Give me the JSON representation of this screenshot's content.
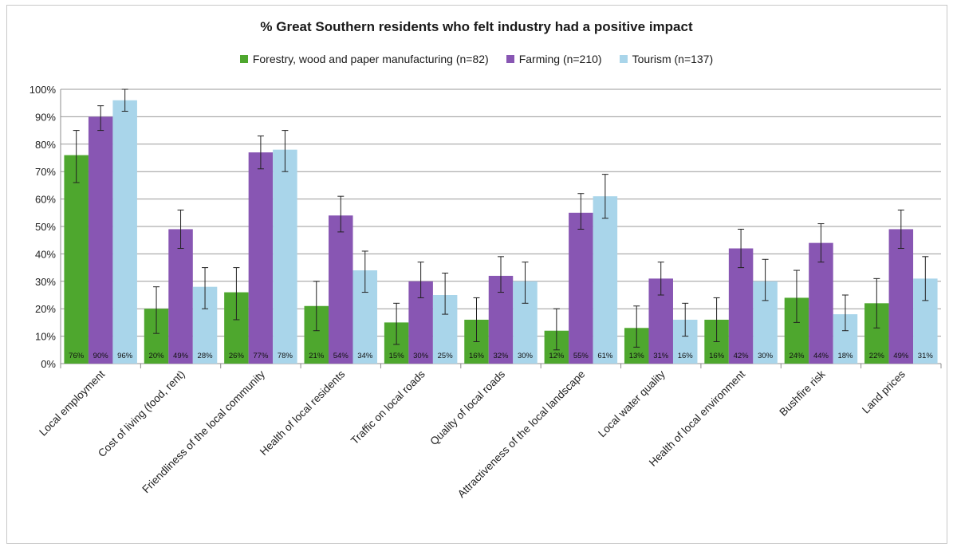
{
  "chart_data": {
    "type": "bar",
    "title": "% Great Southern residents who felt industry had a positive impact",
    "xlabel": "",
    "ylabel": "",
    "ylim": [
      0,
      100
    ],
    "yticks": [
      "0%",
      "10%",
      "20%",
      "30%",
      "40%",
      "50%",
      "60%",
      "70%",
      "80%",
      "90%",
      "100%"
    ],
    "grid": true,
    "legend_position": "top",
    "categories": [
      "Local employment",
      "Cost of living (food, rent)",
      "Friendliness of the local community",
      "Health of local residents",
      "Traffic on local roads",
      "Quality of local roads",
      "Attractiveness of the local landscape",
      "Local water quality",
      "Health of local environment",
      "Bushfire risk",
      "Land prices"
    ],
    "series": [
      {
        "name": "Forestry, wood and paper manufacturing (n=82)",
        "color": "#4ea72e",
        "values": [
          76,
          20,
          26,
          21,
          15,
          16,
          12,
          13,
          16,
          24,
          22
        ],
        "labels": [
          "76%",
          "20%",
          "26%",
          "21%",
          "15%",
          "16%",
          "12%",
          "13%",
          "16%",
          "24%",
          "22%"
        ],
        "error": [
          [
            66,
            85
          ],
          [
            11,
            28
          ],
          [
            16,
            35
          ],
          [
            12,
            30
          ],
          [
            7,
            22
          ],
          [
            8,
            24
          ],
          [
            5,
            20
          ],
          [
            6,
            21
          ],
          [
            8,
            24
          ],
          [
            15,
            34
          ],
          [
            13,
            31
          ]
        ]
      },
      {
        "name": "Farming (n=210)",
        "color": "#8856b3",
        "values": [
          90,
          49,
          77,
          54,
          30,
          32,
          55,
          31,
          42,
          44,
          49
        ],
        "labels": [
          "90%",
          "49%",
          "77%",
          "54%",
          "30%",
          "32%",
          "55%",
          "31%",
          "42%",
          "44%",
          "49%"
        ],
        "error": [
          [
            85,
            94
          ],
          [
            42,
            56
          ],
          [
            71,
            83
          ],
          [
            48,
            61
          ],
          [
            24,
            37
          ],
          [
            26,
            39
          ],
          [
            49,
            62
          ],
          [
            25,
            37
          ],
          [
            35,
            49
          ],
          [
            37,
            51
          ],
          [
            42,
            56
          ]
        ]
      },
      {
        "name": "Tourism (n=137)",
        "color": "#a9d5ea",
        "values": [
          96,
          28,
          78,
          34,
          25,
          30,
          61,
          16,
          30,
          18,
          31
        ],
        "labels": [
          "96%",
          "28%",
          "78%",
          "34%",
          "25%",
          "30%",
          "61%",
          "16%",
          "30%",
          "18%",
          "31%"
        ],
        "error": [
          [
            92,
            100
          ],
          [
            20,
            35
          ],
          [
            70,
            85
          ],
          [
            26,
            41
          ],
          [
            18,
            33
          ],
          [
            22,
            37
          ],
          [
            53,
            69
          ],
          [
            10,
            22
          ],
          [
            23,
            38
          ],
          [
            12,
            25
          ],
          [
            23,
            39
          ]
        ]
      }
    ]
  }
}
